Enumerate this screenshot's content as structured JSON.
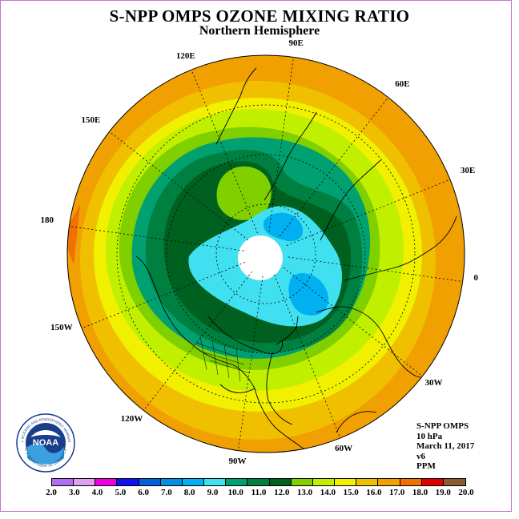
{
  "title": "S-NPP OMPS OZONE MIXING RATIO",
  "subtitle": "Northern Hemisphere",
  "longitude_labels": [
    "90E",
    "60E",
    "30E",
    "0",
    "30W",
    "60W",
    "90W",
    "120W",
    "150W",
    "180",
    "150E",
    "120E"
  ],
  "info": {
    "instrument": "S-NPP OMPS",
    "level": "10 hPa",
    "date": "March 11, 2017",
    "version": "v6",
    "units": "PPM"
  },
  "logo": {
    "text": "NOAA",
    "ring_text": "NATIONAL OCEANIC AND ATMOSPHERIC ADMINISTRATION",
    "ring_text_bottom": "U.S. DEPARTMENT OF COMMERCE",
    "icon": "noaa-logo"
  },
  "colorbar": {
    "ticks": [
      "2.0",
      "3.0",
      "4.0",
      "5.0",
      "6.0",
      "7.0",
      "8.0",
      "9.0",
      "10.0",
      "11.0",
      "12.0",
      "13.0",
      "14.0",
      "15.0",
      "16.0",
      "17.0",
      "18.0",
      "19.0",
      "20.0"
    ],
    "colors": [
      "#b070f0",
      "#e0a0f0",
      "#f000e0",
      "#1010f0",
      "#0060e0",
      "#0090e8",
      "#00b0f0",
      "#40e0f0",
      "#00a070",
      "#008040",
      "#006020",
      "#80d000",
      "#c0f000",
      "#f0f000",
      "#f0c000",
      "#f0a000",
      "#f07000",
      "#e00000",
      "#8a5a30"
    ]
  },
  "map_colors": {
    "orange": "#f0a000",
    "light_orange": "#f0c000",
    "yellow": "#f0f000",
    "yellow_green": "#c0f000",
    "lime": "#80d000",
    "green": "#00a070",
    "dark_green": "#008040",
    "darkest_green": "#006020",
    "cyan": "#40e0f0",
    "light_blue": "#00b0f0",
    "red_orange": "#f07000",
    "no_data": "#ffffff"
  }
}
